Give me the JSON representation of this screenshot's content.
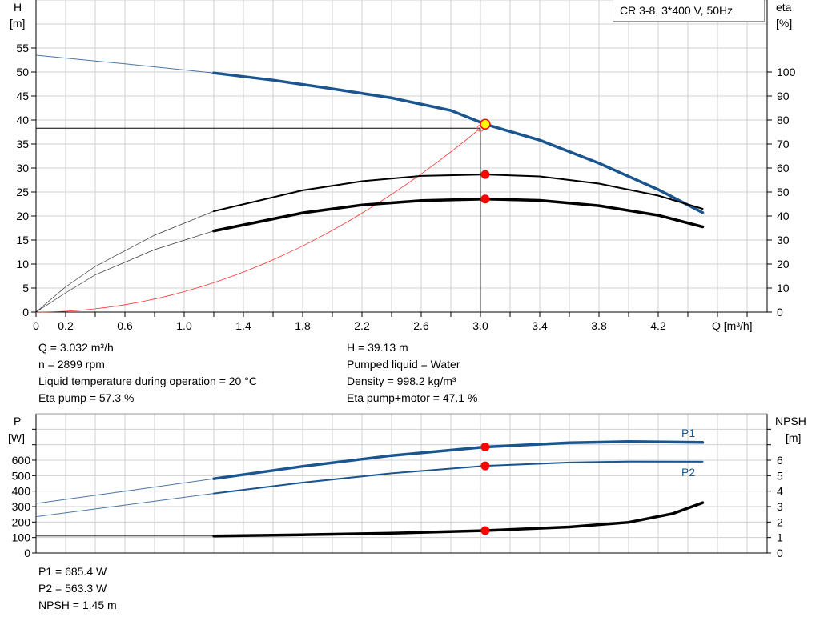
{
  "chart_data": [
    {
      "type": "line",
      "title": "CR 3-8, 3*400 V, 50Hz",
      "xlabel": "Q [m³/h]",
      "ylabel_left": [
        "H",
        "[m]"
      ],
      "ylabel_right": [
        "eta",
        "[%]"
      ],
      "xlim": [
        0,
        4.9
      ],
      "ylim_left": [
        0,
        65
      ],
      "ylim_right": [
        0,
        130
      ],
      "x_ticks": [
        "0",
        "0.2",
        "0.6",
        "1.0",
        "1.4",
        "1.8",
        "2.2",
        "2.6",
        "3.0",
        "3.4",
        "3.8",
        "4.2"
      ],
      "left_ticks": [
        "0",
        "5",
        "10",
        "15",
        "20",
        "25",
        "30",
        "35",
        "40",
        "45",
        "50",
        "55"
      ],
      "right_ticks": [
        "0",
        "10",
        "20",
        "30",
        "40",
        "50",
        "60",
        "70",
        "80",
        "90",
        "100"
      ],
      "grid": true,
      "series": [
        {
          "id": "head",
          "axis": "left",
          "color": "#1a5590",
          "thick_from": 1.2,
          "x": [
            0,
            0.6,
            1.2,
            1.6,
            2.0,
            2.4,
            2.8,
            3.032,
            3.4,
            3.8,
            4.2,
            4.5
          ],
          "y": [
            53.5,
            51.7,
            49.8,
            48.3,
            46.5,
            44.6,
            42.0,
            39.13,
            35.8,
            31.0,
            25.5,
            20.7
          ]
        },
        {
          "id": "eta-pump",
          "axis": "right",
          "color": "#000000",
          "thick_from": 1.2,
          "x": [
            0,
            0.2,
            0.4,
            0.8,
            1.2,
            1.8,
            2.2,
            2.6,
            3.032,
            3.4,
            3.8,
            4.2,
            4.5
          ],
          "y": [
            0,
            10.5,
            19,
            32,
            42,
            50.7,
            54.5,
            56.7,
            57.3,
            56.5,
            53.5,
            48.5,
            43
          ]
        },
        {
          "id": "eta-pump-motor",
          "axis": "right",
          "color": "#000000",
          "thick_from": 1.2,
          "x": [
            0,
            0.2,
            0.4,
            0.8,
            1.2,
            1.8,
            2.2,
            2.6,
            3.032,
            3.4,
            3.8,
            4.2,
            4.5
          ],
          "y": [
            0,
            8,
            15.5,
            26,
            33.8,
            41.3,
            44.6,
            46.4,
            47.1,
            46.5,
            44.3,
            40.3,
            35.5
          ]
        },
        {
          "id": "system-curve",
          "axis": "left",
          "color": "#ff3030",
          "quadratic": true,
          "x": [
            0,
            0.3,
            0.6,
            0.9,
            1.2,
            1.5,
            1.8,
            2.1,
            2.4,
            2.7,
            3.0
          ],
          "y": [
            0,
            0.38,
            1.53,
            3.45,
            6.1,
            9.6,
            13.8,
            18.8,
            24.5,
            31.0,
            38.3
          ]
        }
      ],
      "operating_point": {
        "q": 3.032,
        "h": 39.13,
        "eta_pump": 57.3,
        "eta_total": 47.1
      },
      "duty_point": {
        "q": 3.0,
        "h": 38.3
      }
    },
    {
      "type": "line",
      "ylabel_left": [
        "P",
        "[W]"
      ],
      "ylabel_right": [
        "NPSH",
        "[m]"
      ],
      "xlim": [
        0,
        4.9
      ],
      "ylim_left": [
        0,
        900
      ],
      "ylim_right": [
        0,
        9
      ],
      "left_ticks": [
        "0",
        "100",
        "200",
        "300",
        "400",
        "500",
        "600"
      ],
      "right_ticks": [
        "0",
        "1",
        "2",
        "3",
        "4",
        "5",
        "6"
      ],
      "grid": true,
      "series": [
        {
          "id": "p1",
          "name": "P1",
          "axis": "left",
          "color": "#1a5590",
          "thick_from": 1.2,
          "width": 3.5,
          "x": [
            0,
            0.6,
            1.2,
            1.8,
            2.4,
            3.032,
            3.6,
            4.0,
            4.5
          ],
          "y": [
            320,
            400,
            480,
            560,
            630,
            685.4,
            712,
            720,
            715
          ]
        },
        {
          "id": "p2",
          "name": "P2",
          "axis": "left",
          "color": "#1a5590",
          "thick_from": 1.2,
          "width": 2,
          "x": [
            0,
            0.6,
            1.2,
            1.8,
            2.4,
            3.032,
            3.6,
            4.0,
            4.5
          ],
          "y": [
            235,
            310,
            385,
            455,
            515,
            563.3,
            585,
            591,
            590
          ]
        },
        {
          "id": "npsh",
          "axis": "right",
          "color": "#000000",
          "thick_from": 1.2,
          "width": 3.5,
          "x": [
            0,
            1.2,
            1.8,
            2.4,
            3.032,
            3.6,
            4.0,
            4.3,
            4.5
          ],
          "y": [
            1.1,
            1.1,
            1.18,
            1.28,
            1.45,
            1.68,
            1.98,
            2.55,
            3.25
          ]
        }
      ],
      "operating_point": {
        "q": 3.032,
        "p1": 685.4,
        "p2": 563.3,
        "npsh": 1.45
      }
    }
  ],
  "info_top": {
    "left": [
      "Q = 3.032 m³/h",
      "n = 2899 rpm",
      "Liquid temperature during operation = 20 °C",
      "Eta pump = 57.3 %"
    ],
    "right": [
      "H = 39.13 m",
      "Pumped liquid = Water",
      "Density = 998.2 kg/m³",
      "Eta pump+motor = 47.1 %"
    ]
  },
  "info_bottom": [
    "P1 = 685.4 W",
    "P2 = 563.3 W",
    "NPSH = 1.45 m"
  ]
}
